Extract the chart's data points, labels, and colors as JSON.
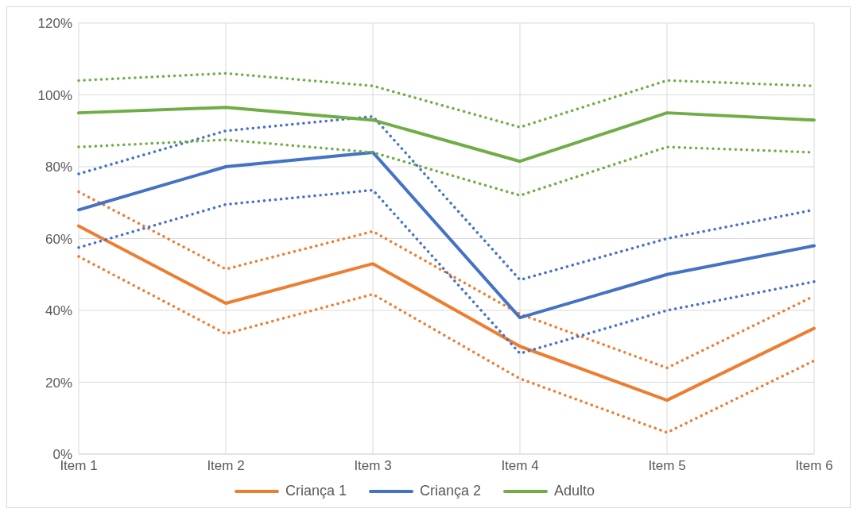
{
  "chart_data": {
    "type": "line",
    "categories": [
      "Item 1",
      "Item 2",
      "Item 3",
      "Item 4",
      "Item 5",
      "Item 6"
    ],
    "series": [
      {
        "name": "Criança 1",
        "color": "#ed7d31",
        "values": [
          63.5,
          42,
          53,
          30,
          15,
          35
        ]
      },
      {
        "color": "#ed7d31",
        "line_style": "dotted",
        "values": [
          73,
          51.5,
          62,
          39,
          24,
          44
        ]
      },
      {
        "color": "#ed7d31",
        "line_style": "dotted",
        "values": [
          55,
          33.5,
          44.5,
          21,
          6,
          26
        ]
      },
      {
        "name": "Criança 2",
        "color": "#4472c4",
        "values": [
          68,
          80,
          84,
          38,
          50,
          58
        ]
      },
      {
        "color": "#4472c4",
        "line_style": "dotted",
        "values": [
          78,
          90,
          94,
          48.5,
          60,
          68
        ]
      },
      {
        "color": "#4472c4",
        "line_style": "dotted",
        "values": [
          57.5,
          69.5,
          73.5,
          28,
          40,
          48
        ]
      },
      {
        "name": "Adulto",
        "color": "#70ad47",
        "values": [
          95,
          96.5,
          93,
          81.5,
          95,
          93
        ]
      },
      {
        "color": "#70ad47",
        "line_style": "dotted",
        "values": [
          104,
          106,
          102.5,
          91,
          104,
          102.5
        ]
      },
      {
        "color": "#70ad47",
        "line_style": "dotted",
        "values": [
          85.5,
          87.5,
          84,
          72,
          85.5,
          84
        ]
      }
    ],
    "ylim": [
      0,
      120
    ],
    "yticks": [
      {
        "value": 0,
        "label": "0%"
      },
      {
        "value": 20,
        "label": "20%"
      },
      {
        "value": 40,
        "label": "40%"
      },
      {
        "value": 60,
        "label": "60%"
      },
      {
        "value": 80,
        "label": "80%"
      },
      {
        "value": 100,
        "label": "100%"
      },
      {
        "value": 120,
        "label": "120%"
      }
    ],
    "grid": true,
    "legend": "bottom",
    "line_style": "solid",
    "marker": "none"
  }
}
